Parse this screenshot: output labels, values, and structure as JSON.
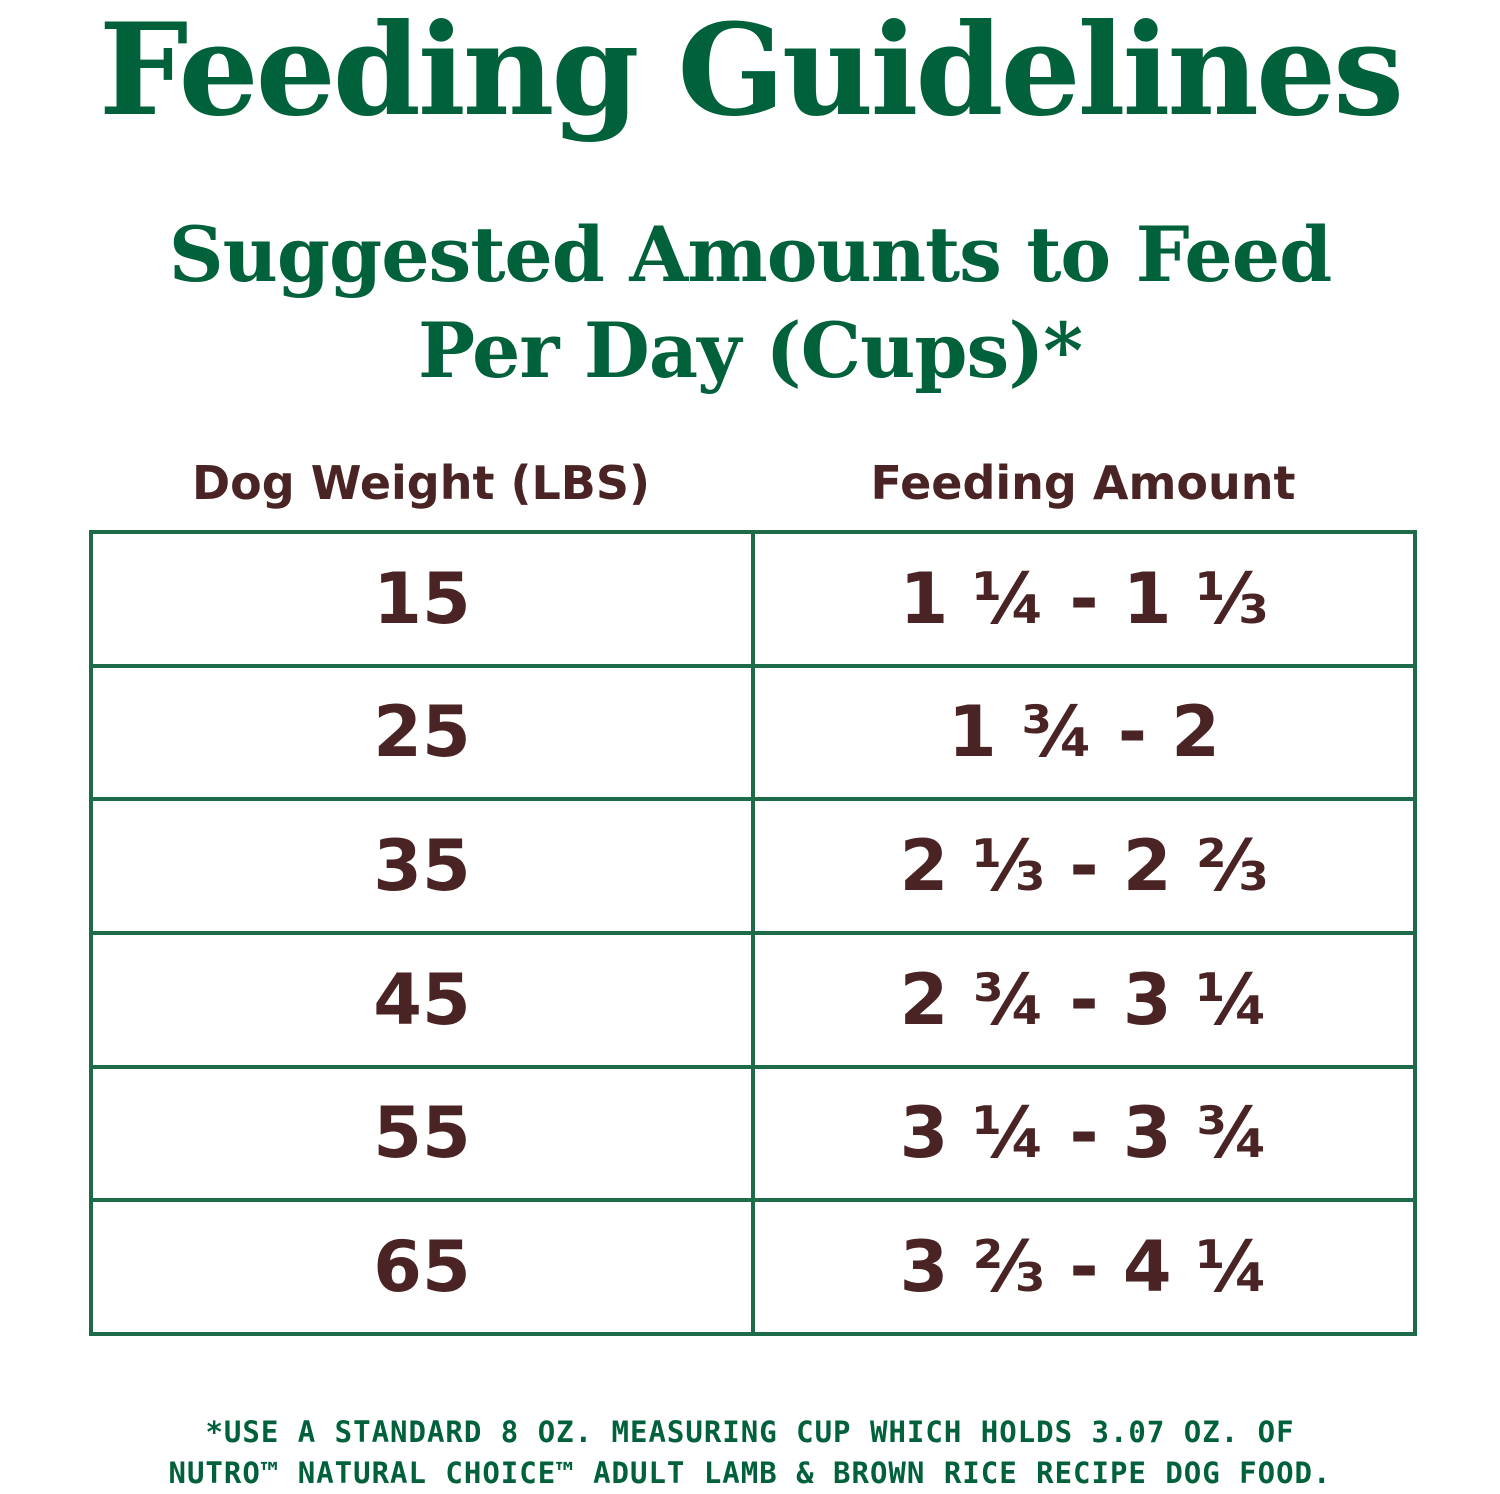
{
  "colors": {
    "heading_green": "#00613a",
    "text_brown": "#4a2424",
    "border_green": "#1e6b4a",
    "background": "#ffffff"
  },
  "title": "Feeding Guidelines",
  "subtitle": {
    "line1": "Suggested Amounts to Feed",
    "line2": "Per Day (Cups)*"
  },
  "table": {
    "headers": {
      "weight": "Dog Weight (LBS)",
      "amount": "Feeding Amount"
    },
    "rows": [
      {
        "weight": "15",
        "amount": "1 ¼ - 1 ⅓"
      },
      {
        "weight": "25",
        "amount": "1 ¾ - 2"
      },
      {
        "weight": "35",
        "amount": "2 ⅓ - 2 ⅔"
      },
      {
        "weight": "45",
        "amount": "2 ¾ - 3 ¼"
      },
      {
        "weight": "55",
        "amount": "3 ¼ - 3 ¾"
      },
      {
        "weight": "65",
        "amount": "3 ⅔ - 4 ¼"
      }
    ]
  },
  "footnote": {
    "line1": "*USE A STANDARD 8 OZ. MEASURING CUP WHICH HOLDS 3.07 OZ. OF",
    "line2": "NUTRO™ NATURAL CHOICE™ ADULT LAMB & BROWN RICE RECIPE DOG FOOD."
  }
}
